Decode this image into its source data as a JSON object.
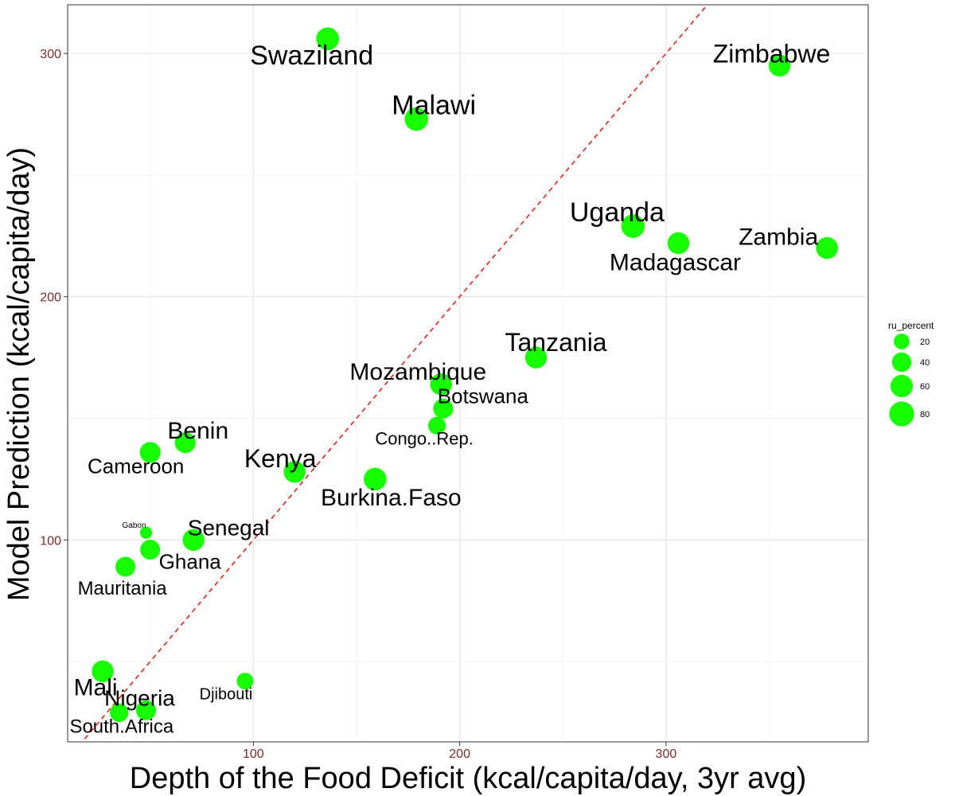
{
  "chart_data": {
    "type": "scatter",
    "title": "",
    "xlabel": "Depth of the Food Deficit (kcal/capita/day, 3yr avg)",
    "ylabel": "Model Prediction (kcal/capita/day)",
    "xlim": [
      10,
      398
    ],
    "ylim": [
      17,
      320
    ],
    "x_ticks": [
      100,
      200,
      300
    ],
    "y_ticks": [
      100,
      200,
      300
    ],
    "grid": true,
    "reference_line": {
      "style": "dashed",
      "color": "#e0201c",
      "slope": 1,
      "intercept": 0
    },
    "point_color": "#17ff00",
    "size_variable": "ru_percent",
    "legend": {
      "title": "ru_percent",
      "position": "right",
      "entries": [
        {
          "label": "20",
          "value": 20
        },
        {
          "label": "40",
          "value": 40
        },
        {
          "label": "60",
          "value": 60
        },
        {
          "label": "80",
          "value": 80
        }
      ]
    },
    "points": [
      {
        "name": "Swaziland",
        "x": 136,
        "y": 306,
        "size": 63,
        "label_size": 34,
        "label_dx": -20,
        "label_dy": 32
      },
      {
        "name": "Zimbabwe",
        "x": 355,
        "y": 295,
        "size": 56,
        "label_size": 32,
        "label_dx": -10,
        "label_dy": -4
      },
      {
        "name": "Malawi",
        "x": 179,
        "y": 273,
        "size": 68,
        "label_size": 34,
        "label_dx": 22,
        "label_dy": -6
      },
      {
        "name": "Uganda",
        "x": 284,
        "y": 229,
        "size": 68,
        "label_size": 34,
        "label_dx": -20,
        "label_dy": -6
      },
      {
        "name": "Madagascar",
        "x": 306,
        "y": 222,
        "size": 56,
        "label_size": 30,
        "label_dx": -4,
        "label_dy": 34
      },
      {
        "name": "Zambia",
        "x": 378,
        "y": 220,
        "size": 56,
        "label_size": 30,
        "label_dx": -61,
        "label_dy": -4
      },
      {
        "name": "Tanzania",
        "x": 237,
        "y": 175,
        "size": 56,
        "label_size": 32,
        "label_dx": 25,
        "label_dy": -8
      },
      {
        "name": "Mozambique",
        "x": 191,
        "y": 164,
        "size": 56,
        "label_size": 30,
        "label_dx": -29,
        "label_dy": -6
      },
      {
        "name": "Botswana",
        "x": 192,
        "y": 154,
        "size": 43,
        "label_size": 26,
        "label_dx": 50,
        "label_dy": -7
      },
      {
        "name": "Congo..Rep.",
        "x": 189,
        "y": 147,
        "size": 30,
        "label_size": 22,
        "label_dx": -16,
        "label_dy": 24
      },
      {
        "name": "Benin",
        "x": 67,
        "y": 140,
        "size": 49,
        "label_size": 30,
        "label_dx": 16,
        "label_dy": -5
      },
      {
        "name": "Cameroon",
        "x": 50,
        "y": 136,
        "size": 49,
        "label_size": 26,
        "label_dx": -18,
        "label_dy": 26
      },
      {
        "name": "Kenya",
        "x": 120,
        "y": 128,
        "size": 56,
        "label_size": 32,
        "label_dx": -18,
        "label_dy": -6
      },
      {
        "name": "Burkina.Faso",
        "x": 159,
        "y": 125,
        "size": 63,
        "label_size": 30,
        "label_dx": 20,
        "label_dy": 33
      },
      {
        "name": "Gabon",
        "x": 48,
        "y": 103,
        "size": 8,
        "label_size": 10,
        "label_dx": -15,
        "label_dy": -6
      },
      {
        "name": "Senegal",
        "x": 71,
        "y": 100,
        "size": 56,
        "label_size": 28,
        "label_dx": 44,
        "label_dy": -6
      },
      {
        "name": "Ghana",
        "x": 50,
        "y": 96,
        "size": 43,
        "label_size": 26,
        "label_dx": 50,
        "label_dy": 24
      },
      {
        "name": "Mauritania",
        "x": 38,
        "y": 89,
        "size": 43,
        "label_size": 24,
        "label_dx": -4,
        "label_dy": 35
      },
      {
        "name": "Mali",
        "x": 27,
        "y": 46,
        "size": 56,
        "label_size": 30,
        "label_dx": -9,
        "label_dy": 30
      },
      {
        "name": "Djibouti",
        "x": 96,
        "y": 42,
        "size": 25,
        "label_size": 20,
        "label_dx": -24,
        "label_dy": 23
      },
      {
        "name": "Nigeria",
        "x": 48,
        "y": 30,
        "size": 43,
        "label_size": 28,
        "label_dx": -8,
        "label_dy": -6
      },
      {
        "name": "South.Africa",
        "x": 35,
        "y": 29,
        "size": 35,
        "label_size": 24,
        "label_dx": 3,
        "label_dy": 25
      }
    ]
  }
}
